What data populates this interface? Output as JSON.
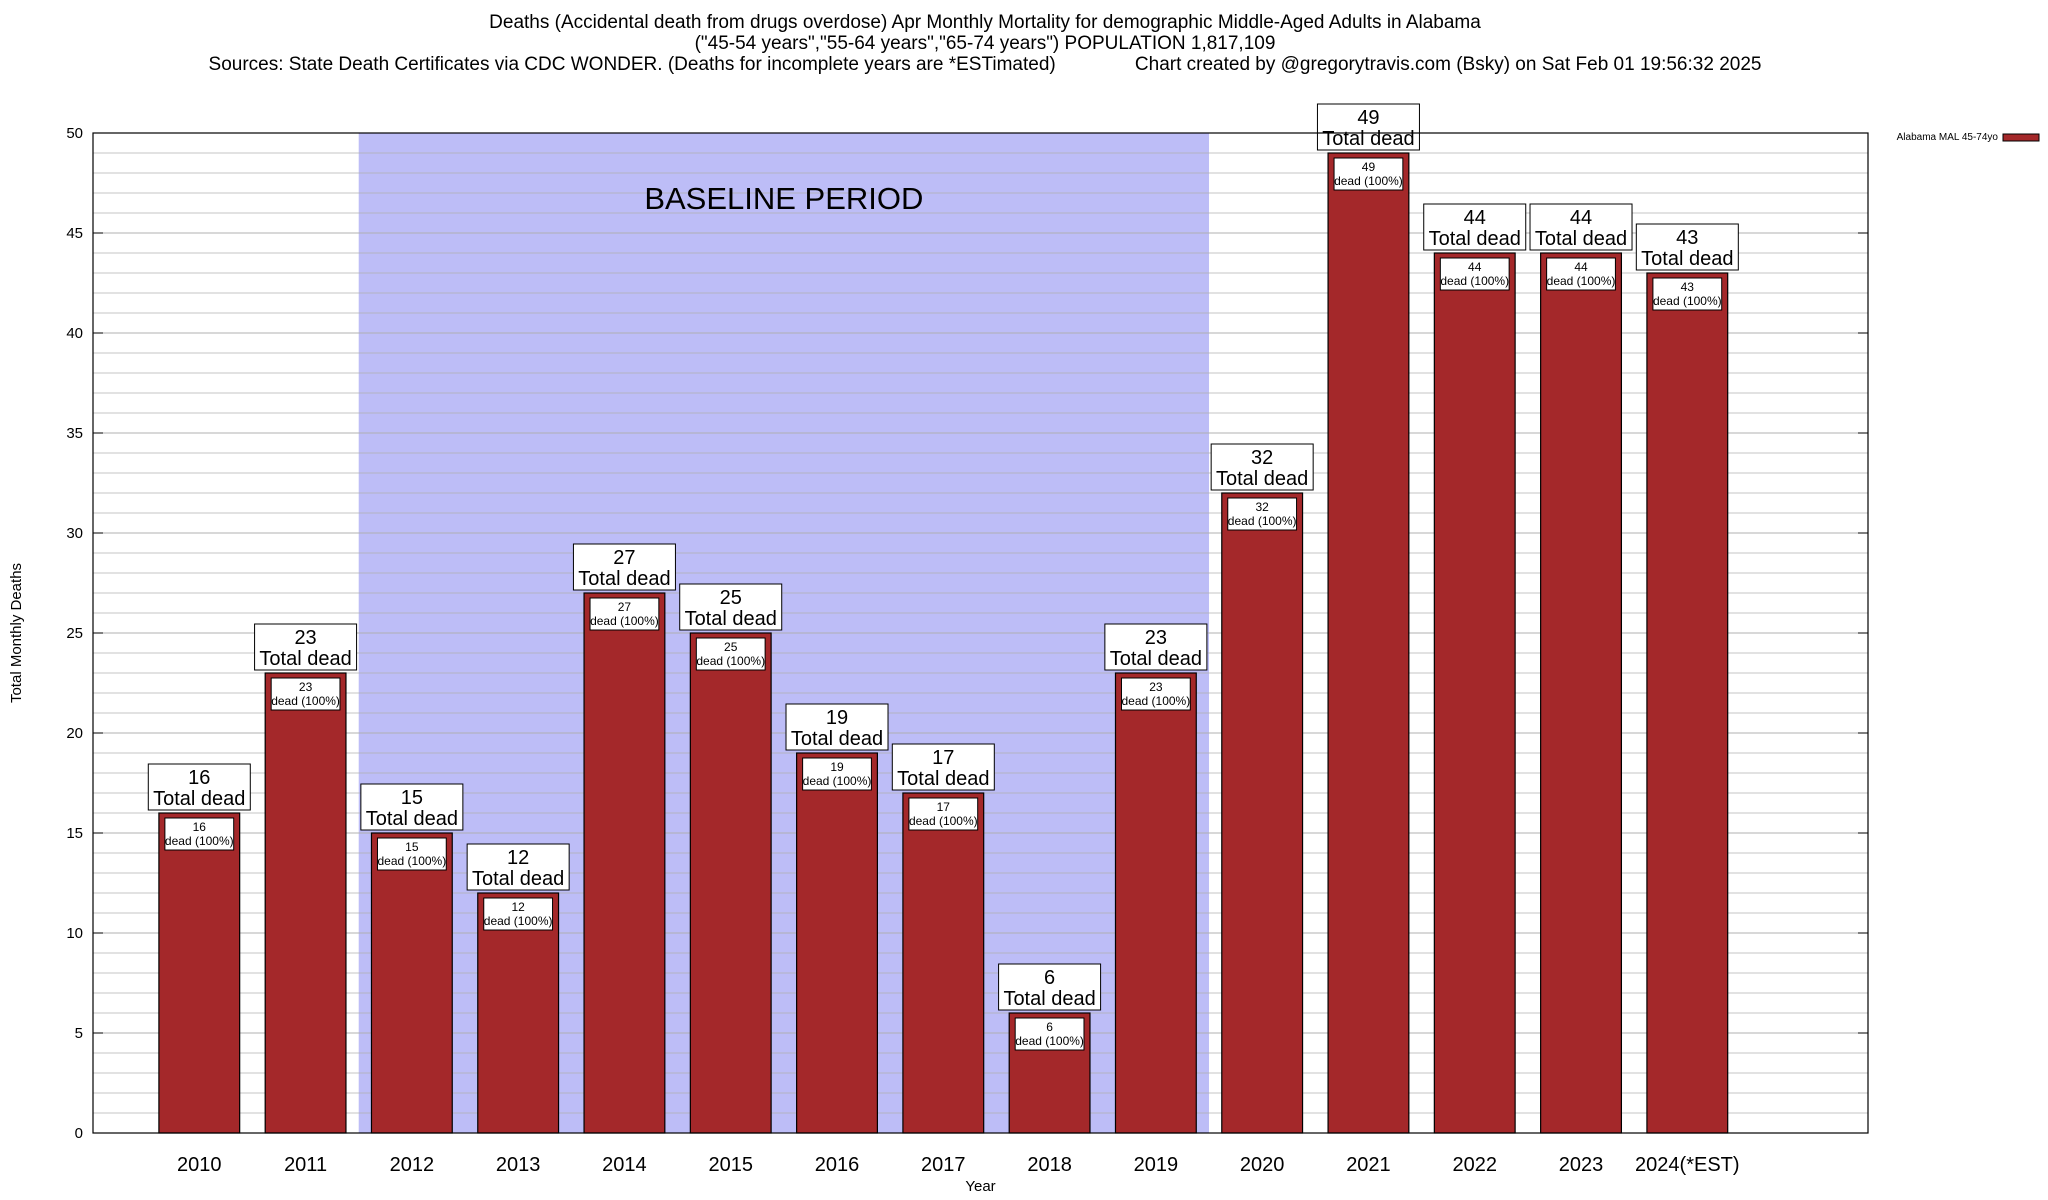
{
  "header": {
    "line1": "Deaths (Accidental death from drugs overdose) Apr Monthly Mortality for demographic Middle-Aged Adults in Alabama",
    "line2": "(\"45-54 years\",\"55-64 years\",\"65-74 years\") POPULATION 1,817,109",
    "line3": "Sources: State Death Certificates via CDC WONDER. (Deaths for incomplete years are *ESTimated)               Chart created by @gregorytravis.com (Bsky) on Sat Feb 01 19:56:32 2025"
  },
  "chart_data": {
    "type": "bar",
    "xlabel": "Year",
    "ylabel": "Total Monthly Deaths",
    "ylim": [
      0,
      50
    ],
    "y_ticks": [
      0,
      5,
      10,
      15,
      20,
      25,
      30,
      35,
      40,
      45,
      50
    ],
    "grid": true,
    "categories": [
      "2010",
      "2011",
      "2012",
      "2013",
      "2014",
      "2015",
      "2016",
      "2017",
      "2018",
      "2019",
      "2020",
      "2021",
      "2022",
      "2023",
      "2024(*EST)"
    ],
    "series": [
      {
        "name": "Alabama MAL 45-74yo",
        "values": [
          16,
          23,
          15,
          12,
          27,
          25,
          19,
          17,
          6,
          23,
          32,
          49,
          44,
          44,
          43
        ]
      }
    ],
    "total_label_suffix": "Total dead",
    "inner_label_suffix": "dead (100%)",
    "baseline": {
      "label": "BASELINE PERIOD",
      "from": "2012",
      "to": "2019"
    },
    "legend_position": "top-right",
    "colors": {
      "bar": "#a4282a",
      "baseline_fill": "#bdbdf7",
      "grid": "#b0b0b0"
    }
  }
}
